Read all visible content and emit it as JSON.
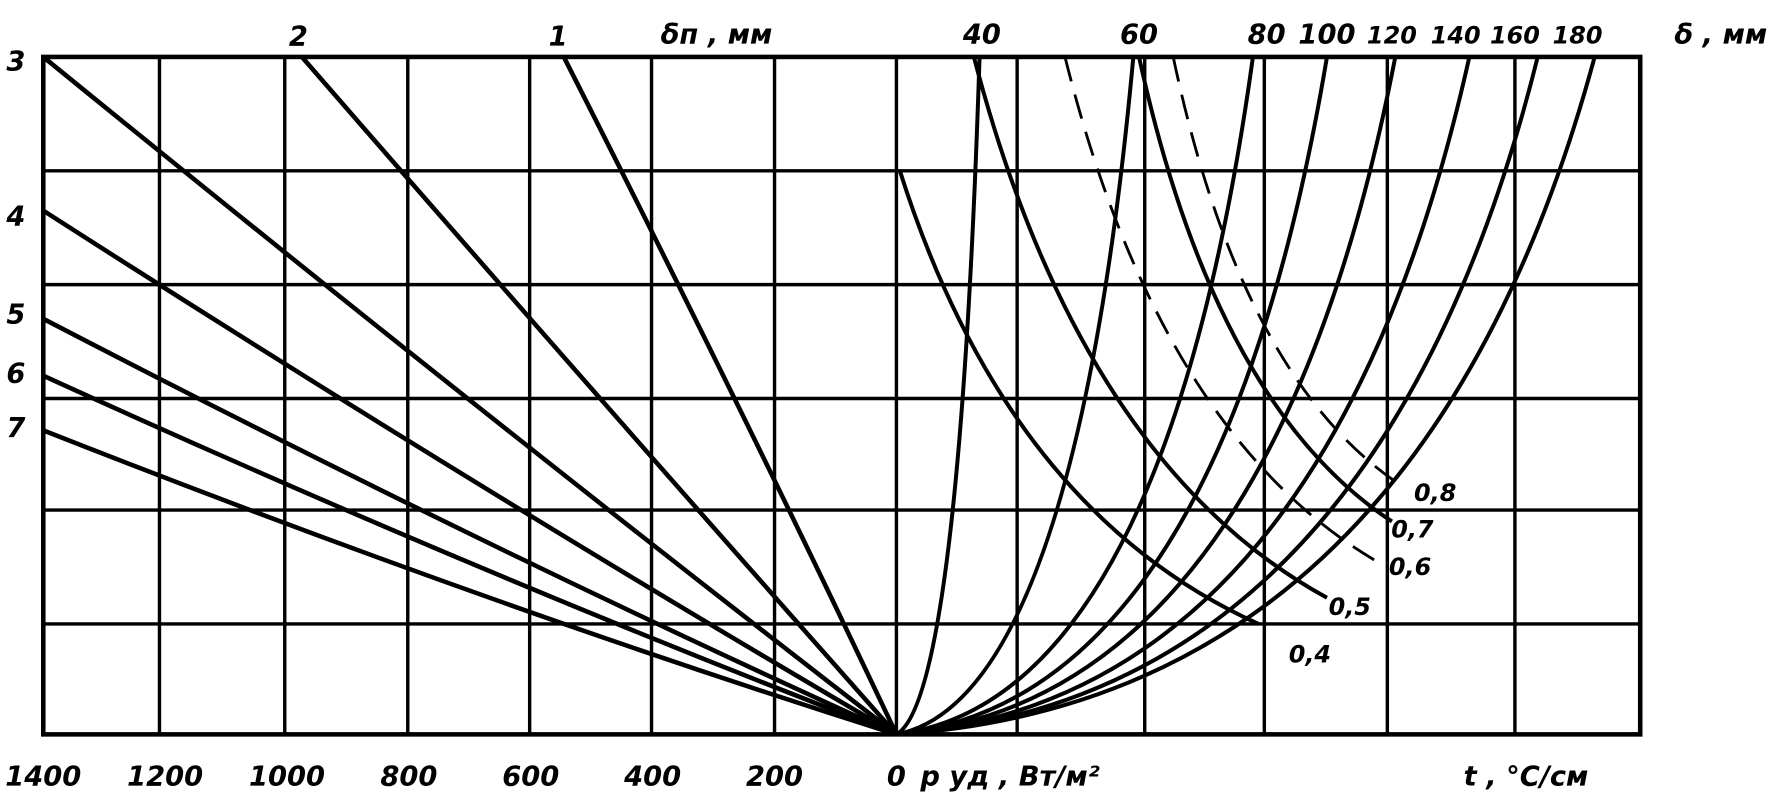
{
  "chart_data": {
    "type": "line",
    "subtype": "nomogram",
    "grid": true,
    "left_panel": {
      "xlabel": "p уд , Вт/м²",
      "x_ticks": [
        "1400",
        "1200",
        "1000",
        "800",
        "600",
        "400",
        "200",
        "0"
      ],
      "xlim": [
        1400,
        0
      ],
      "top_label": "δп , мм",
      "series_labels": [
        "1",
        "2",
        "3",
        "4",
        "5",
        "6",
        "7"
      ]
    },
    "right_panel": {
      "xlabel": "t , °C/см",
      "top_label": "δ , мм",
      "delta_curves": [
        "40",
        "60",
        "80",
        "100",
        "120",
        "140",
        "160",
        "180"
      ],
      "efficiency_curves": [
        {
          "label": "0,4",
          "style": "solid"
        },
        {
          "label": "0,5",
          "style": "solid"
        },
        {
          "label": "0,6",
          "style": "dashed"
        },
        {
          "label": "0,7",
          "style": "solid"
        },
        {
          "label": "0,8",
          "style": "dashed"
        }
      ]
    },
    "line_color": "#000000",
    "background": "#ffffff"
  }
}
